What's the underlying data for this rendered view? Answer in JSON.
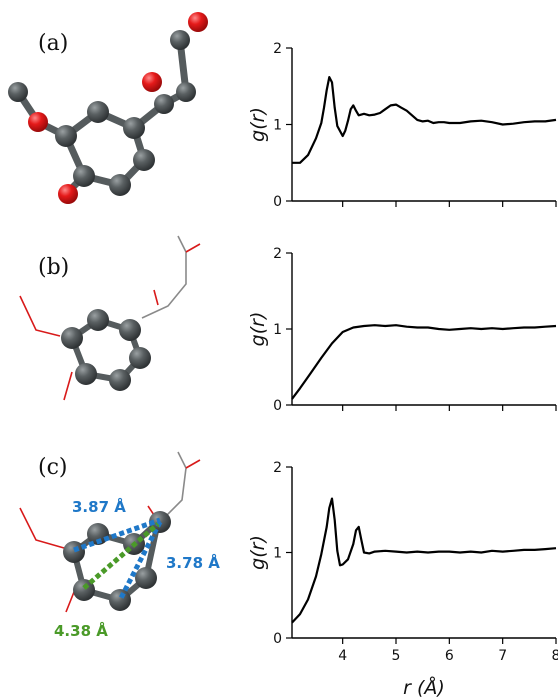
{
  "panels": [
    {
      "label": "(a)",
      "ylabel": "g(r)"
    },
    {
      "label": "(b)",
      "ylabel": "g(r)"
    },
    {
      "label": "(c)",
      "ylabel": "g(r)"
    }
  ],
  "x_axis_label": "r (Å)",
  "distances": {
    "d1": "3.87 Å",
    "d2": "3.78 Å",
    "d3": "4.38 Å"
  },
  "colors": {
    "carbon": "#4a5052",
    "oxygen": "#e0101a",
    "bond_gray": "#8a8a8a",
    "bond_red": "#d81a1a",
    "blue_dashes": "#1f78c8",
    "green_dashes": "#4a9a28",
    "curve": "#000000"
  },
  "chart_data": [
    {
      "type": "line",
      "xlabel": "r (Å)",
      "ylabel": "g(r)",
      "xlim": [
        3.05,
        8.0
      ],
      "ylim": [
        0,
        2
      ],
      "xticks": [
        4,
        5,
        6,
        7,
        8
      ],
      "yticks": [
        0,
        1,
        2
      ],
      "series": [
        {
          "x": [
            3.05,
            3.2,
            3.35,
            3.5,
            3.6,
            3.65,
            3.7,
            3.75,
            3.8,
            3.85,
            3.9,
            4.0,
            4.05,
            4.1,
            4.15,
            4.2,
            4.25,
            4.3,
            4.4,
            4.5,
            4.6,
            4.7,
            4.8,
            4.9,
            5.0,
            5.1,
            5.2,
            5.3,
            5.4,
            5.5,
            5.6,
            5.7,
            5.8,
            5.9,
            6.0,
            6.2,
            6.4,
            6.6,
            6.8,
            7.0,
            7.2,
            7.4,
            7.6,
            7.8,
            8.0
          ],
          "y": [
            0.5,
            0.5,
            0.6,
            0.82,
            1.02,
            1.22,
            1.45,
            1.62,
            1.55,
            1.22,
            0.98,
            0.85,
            0.92,
            1.05,
            1.2,
            1.25,
            1.18,
            1.12,
            1.14,
            1.12,
            1.13,
            1.15,
            1.2,
            1.25,
            1.26,
            1.22,
            1.18,
            1.12,
            1.06,
            1.04,
            1.05,
            1.02,
            1.03,
            1.03,
            1.02,
            1.02,
            1.04,
            1.05,
            1.03,
            1.0,
            1.01,
            1.03,
            1.04,
            1.04,
            1.06
          ]
        }
      ]
    },
    {
      "type": "line",
      "xlabel": "r (Å)",
      "ylabel": "g(r)",
      "xlim": [
        3.05,
        8.0
      ],
      "ylim": [
        0,
        2
      ],
      "xticks": [
        4,
        5,
        6,
        7,
        8
      ],
      "yticks": [
        0,
        1,
        2
      ],
      "series": [
        {
          "x": [
            3.05,
            3.2,
            3.4,
            3.6,
            3.8,
            4.0,
            4.2,
            4.4,
            4.6,
            4.8,
            5.0,
            5.2,
            5.4,
            5.6,
            5.8,
            6.0,
            6.2,
            6.4,
            6.6,
            6.8,
            7.0,
            7.2,
            7.4,
            7.6,
            7.8,
            8.0
          ],
          "y": [
            0.08,
            0.22,
            0.42,
            0.62,
            0.81,
            0.96,
            1.02,
            1.04,
            1.05,
            1.04,
            1.05,
            1.03,
            1.02,
            1.02,
            1.0,
            0.99,
            1.0,
            1.01,
            1.0,
            1.01,
            1.0,
            1.01,
            1.02,
            1.02,
            1.03,
            1.04
          ]
        }
      ]
    },
    {
      "type": "line",
      "xlabel": "r (Å)",
      "ylabel": "g(r)",
      "xlim": [
        3.05,
        8.0
      ],
      "ylim": [
        0,
        2
      ],
      "xticks": [
        4,
        5,
        6,
        7,
        8
      ],
      "yticks": [
        0,
        1,
        2
      ],
      "series": [
        {
          "x": [
            3.05,
            3.2,
            3.35,
            3.5,
            3.6,
            3.7,
            3.75,
            3.8,
            3.85,
            3.9,
            3.95,
            4.0,
            4.1,
            4.2,
            4.25,
            4.3,
            4.35,
            4.4,
            4.5,
            4.6,
            4.8,
            5.0,
            5.2,
            5.4,
            5.6,
            5.8,
            6.0,
            6.2,
            6.4,
            6.6,
            6.8,
            7.0,
            7.2,
            7.4,
            7.6,
            7.8,
            8.0
          ],
          "y": [
            0.18,
            0.28,
            0.45,
            0.72,
            0.98,
            1.3,
            1.52,
            1.63,
            1.38,
            1.02,
            0.85,
            0.86,
            0.92,
            1.1,
            1.26,
            1.3,
            1.15,
            1.0,
            0.99,
            1.01,
            1.02,
            1.01,
            1.0,
            1.01,
            1.0,
            1.01,
            1.01,
            1.0,
            1.01,
            1.0,
            1.02,
            1.01,
            1.02,
            1.03,
            1.03,
            1.04,
            1.05
          ]
        }
      ]
    }
  ]
}
